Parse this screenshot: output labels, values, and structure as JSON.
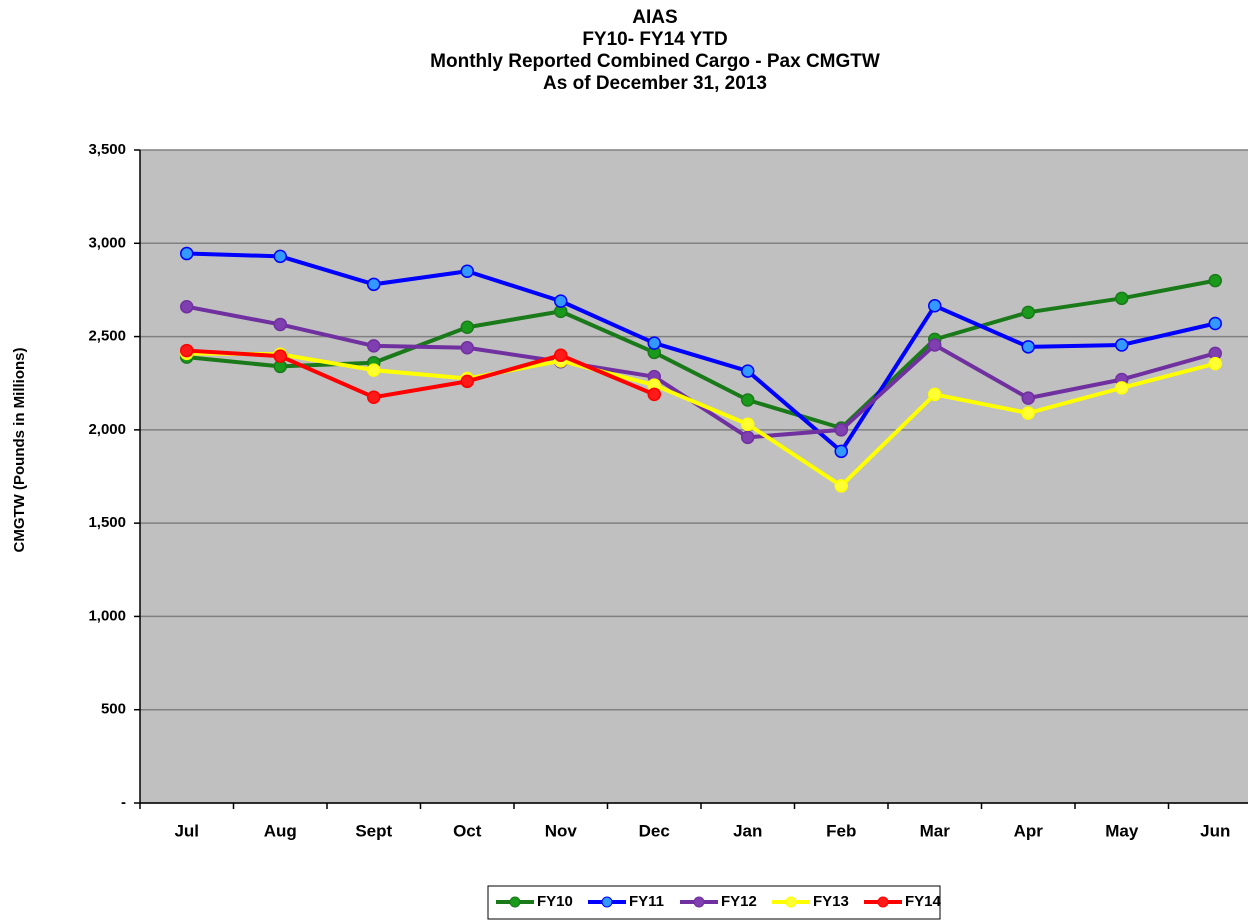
{
  "chart_data": {
    "type": "line",
    "title": [
      "AIAS",
      "FY10- FY14 YTD",
      "Monthly Reported Combined Cargo - Pax CMGTW",
      "As of  December  31, 2013"
    ],
    "y_label": "CMGTW (Pounds in Millions)",
    "categories": [
      "Jul",
      "Aug",
      "Sept",
      "Oct",
      "Nov",
      "Dec",
      "Jan",
      "Feb",
      "Mar",
      "Apr",
      "May",
      "Jun"
    ],
    "series": [
      {
        "name": "FY10",
        "color": "#1a7a1a",
        "marker_color": "#1a9a1a",
        "values": [
          2390,
          2340,
          2360,
          2550,
          2635,
          2415,
          2160,
          2010,
          2485,
          2630,
          2705,
          2800
        ]
      },
      {
        "name": "FY11",
        "color": "#0000ff",
        "marker_color": "#3399ff",
        "values": [
          2945,
          2930,
          2780,
          2850,
          2690,
          2465,
          2315,
          1885,
          2665,
          2445,
          2455,
          2570
        ]
      },
      {
        "name": "FY12",
        "color": "#7030a0",
        "marker_color": "#7f3fb0",
        "values": [
          2660,
          2565,
          2450,
          2440,
          2365,
          2285,
          1960,
          2000,
          2455,
          2170,
          2270,
          2410
        ]
      },
      {
        "name": "FY13",
        "color": "#ffff00",
        "marker_color": "#ffff33",
        "values": [
          2410,
          2405,
          2320,
          2275,
          2370,
          2240,
          2030,
          1700,
          2190,
          2090,
          2225,
          2355
        ]
      },
      {
        "name": "FY14",
        "color": "#ff0000",
        "marker_color": "#ff1a1a",
        "values": [
          2425,
          2395,
          2175,
          2260,
          2400,
          2190,
          null,
          null,
          null,
          null,
          null,
          null
        ]
      }
    ],
    "ylim": [
      0,
      3500
    ],
    "yticks": [
      {
        "value": 0,
        "label": "-"
      },
      500,
      {
        "value": 1000,
        "label": "1,000"
      },
      {
        "value": 1500,
        "label": "1,500"
      },
      {
        "value": 2000,
        "label": "2,000"
      },
      {
        "value": 2500,
        "label": "2,500"
      },
      {
        "value": 3000,
        "label": "3,000"
      },
      {
        "value": 3500,
        "label": "3,500"
      }
    ],
    "grid": true,
    "legend": "bottom"
  }
}
